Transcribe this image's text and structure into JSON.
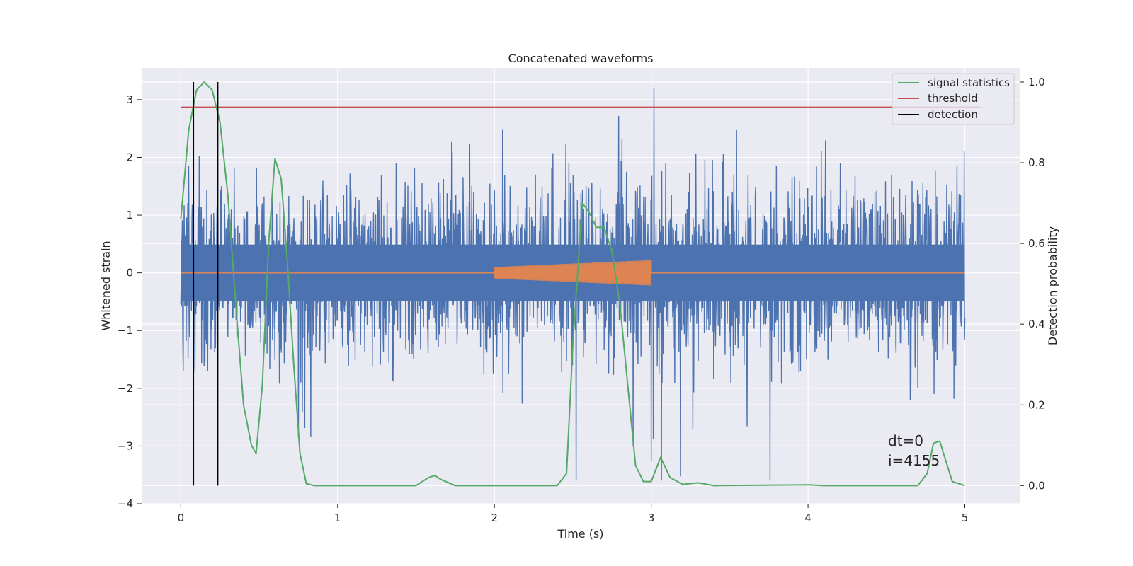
{
  "chart_data": {
    "type": "line",
    "title": "Concatenated waveforms",
    "xlabel": "Time (s)",
    "ylabel": "Whitened strain",
    "y2label": "Detection probability",
    "xlim": [
      -0.25,
      5.35
    ],
    "ylim": [
      -4.0,
      3.55
    ],
    "y2lim": [
      -0.045,
      1.035
    ],
    "xticks": [
      0,
      1,
      2,
      3,
      4,
      5
    ],
    "xtick_labels": [
      "0",
      "1",
      "2",
      "3",
      "4",
      "5"
    ],
    "yticks": [
      -4,
      -3,
      -2,
      -1,
      0,
      1,
      2,
      3
    ],
    "ytick_labels": [
      "−4",
      "−3",
      "−2",
      "−1",
      "0",
      "1",
      "2",
      "3"
    ],
    "y2ticks": [
      0.0,
      0.2,
      0.4,
      0.6,
      0.8,
      1.0
    ],
    "y2tick_labels": [
      "0.0",
      "0.2",
      "0.4",
      "0.6",
      "0.8",
      "1.0"
    ],
    "grid": true,
    "legend_position": "top-right",
    "colors": {
      "strain": "#4c72b0",
      "injection": "#dd8452",
      "statistics": "#55a868",
      "threshold": "#c44e52",
      "detection": "#000000",
      "background": "#eaeaf2"
    },
    "series": [
      {
        "name": "",
        "role": "strain",
        "axis": "left",
        "x_range": [
          0,
          5
        ],
        "typical_range": [
          -1.4,
          1.4
        ],
        "peak_range": [
          -3.6,
          3.2
        ]
      },
      {
        "name": "",
        "role": "injection",
        "axis": "left",
        "x": [
          0,
          2,
          2,
          3,
          3,
          5
        ],
        "y": [
          0,
          0,
          0.1,
          0.2,
          0,
          0
        ],
        "oscillating_segment": [
          2,
          3
        ]
      },
      {
        "name": "signal statistics",
        "role": "statistics",
        "axis": "right",
        "x": [
          0.0,
          0.05,
          0.1,
          0.15,
          0.2,
          0.25,
          0.3,
          0.35,
          0.4,
          0.45,
          0.48,
          0.52,
          0.56,
          0.6,
          0.64,
          0.68,
          0.72,
          0.76,
          0.8,
          0.85,
          0.9,
          1.0,
          1.5,
          1.58,
          1.62,
          1.66,
          1.75,
          2.0,
          2.4,
          2.46,
          2.5,
          2.56,
          2.6,
          2.65,
          2.7,
          2.75,
          2.8,
          2.85,
          2.9,
          2.95,
          3.0,
          3.06,
          3.12,
          3.2,
          3.3,
          3.4,
          4.0,
          4.1,
          4.7,
          4.76,
          4.8,
          4.84,
          4.88,
          4.92,
          5.0
        ],
        "y": [
          0.66,
          0.88,
          0.98,
          1.0,
          0.98,
          0.9,
          0.72,
          0.45,
          0.2,
          0.1,
          0.08,
          0.25,
          0.6,
          0.81,
          0.76,
          0.55,
          0.3,
          0.08,
          0.005,
          0.0,
          0.0,
          0.0,
          0.0,
          0.02,
          0.025,
          0.015,
          0.0,
          0.0,
          0.0,
          0.03,
          0.35,
          0.7,
          0.68,
          0.64,
          0.64,
          0.58,
          0.45,
          0.25,
          0.05,
          0.01,
          0.01,
          0.07,
          0.02,
          0.003,
          0.007,
          0.0,
          0.002,
          0.0,
          0.0,
          0.03,
          0.105,
          0.11,
          0.06,
          0.01,
          0.0
        ]
      },
      {
        "name": "threshold",
        "role": "threshold",
        "axis": "left",
        "x": [
          0,
          5.1
        ],
        "y": [
          2.87,
          2.87
        ]
      },
      {
        "name": "detection",
        "role": "detection",
        "axis": "right",
        "x": [
          0.08,
          0.235
        ],
        "y_span": [
          0.0,
          1.0
        ]
      }
    ],
    "annotations": [
      "dt=0",
      "i=4155"
    ]
  }
}
